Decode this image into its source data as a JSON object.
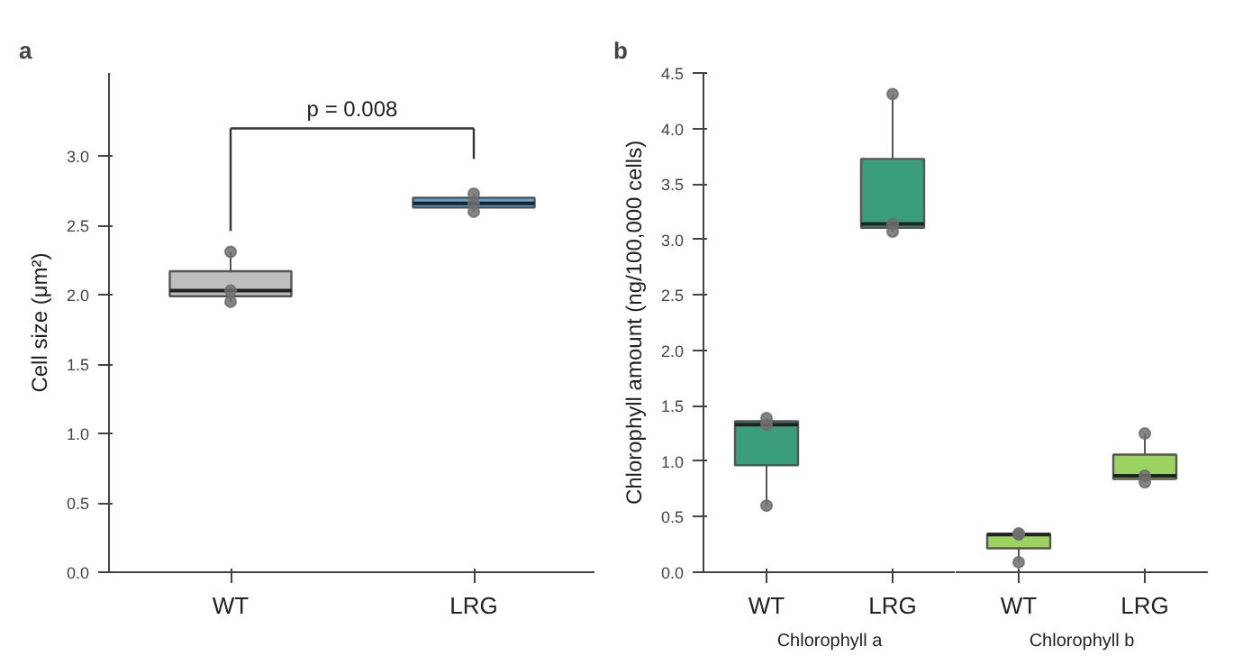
{
  "chart_data": [
    {
      "type": "box",
      "title": "a",
      "ylabel": "Cell size (μm²)",
      "categories": [
        "WT",
        "LRG"
      ],
      "colors": [
        "#bebebe",
        "#5aa5dc"
      ],
      "boxes": [
        {
          "low": 1.95,
          "q1": 1.99,
          "median": 2.03,
          "q3": 2.17,
          "high": 2.31
        },
        {
          "low": 2.6,
          "q1": 2.63,
          "median": 2.66,
          "q3": 2.7,
          "high": 2.73
        }
      ],
      "series": [
        {
          "type": "scatter",
          "color": "#6e6e6e",
          "x": [
            "WT",
            "WT",
            "WT",
            "LRG",
            "LRG",
            "LRG"
          ],
          "values": [
            1.95,
            2.03,
            2.31,
            2.6,
            2.66,
            2.73
          ]
        }
      ],
      "ylim": [
        0,
        3.6
      ],
      "yticks": [
        {
          "value": 0,
          "label": "0.0"
        },
        0.5,
        {
          "value": 1,
          "label": "1.0"
        },
        1.5,
        {
          "value": 2,
          "label": "2.0"
        },
        2.5,
        {
          "value": 3,
          "label": "3.0"
        }
      ],
      "grid": false,
      "annotations": [
        "p = 0.008"
      ]
    },
    {
      "type": "box",
      "title": "b",
      "ylabel": "Chlorophyll amount (ng/100,000 cells)",
      "xlabel": "Chlorophyll a",
      "categories": [
        "WT",
        "LRG"
      ],
      "colors": [
        "#3a9e7e",
        "#3a9e7e"
      ],
      "boxes": [
        {
          "low": 0.6,
          "q1": 0.965,
          "median": 1.33,
          "q3": 1.36,
          "high": 1.39
        },
        {
          "low": 3.07,
          "q1": 3.105,
          "median": 3.14,
          "q3": 3.725,
          "high": 4.31
        }
      ],
      "series": [
        {
          "type": "scatter",
          "color": "#6e6e6e",
          "x": [
            "WT",
            "WT",
            "WT",
            "LRG",
            "LRG",
            "LRG"
          ],
          "values": [
            0.6,
            1.33,
            1.39,
            3.07,
            3.14,
            4.31
          ]
        }
      ],
      "ylim": [
        0,
        4.5
      ],
      "yticks": [
        {
          "value": 0,
          "label": "0.0"
        },
        0.5,
        {
          "value": 1,
          "label": "1.0"
        },
        1.5,
        {
          "value": 2,
          "label": "2.0"
        },
        2.5,
        {
          "value": 3,
          "label": "3.0"
        },
        3.5,
        {
          "value": 4,
          "label": "4.0"
        },
        4.5
      ],
      "grid": false
    },
    {
      "type": "box",
      "xlabel": "Chlorophyll b",
      "categories": [
        "WT",
        "LRG"
      ],
      "colors": [
        "#9bd35f",
        "#9bd35f"
      ],
      "boxes": [
        {
          "low": 0.09,
          "q1": 0.215,
          "median": 0.34,
          "q3": 0.345,
          "high": 0.35
        },
        {
          "low": 0.81,
          "q1": 0.84,
          "median": 0.87,
          "q3": 1.06,
          "high": 1.25
        }
      ],
      "series": [
        {
          "type": "scatter",
          "color": "#6e6e6e",
          "x": [
            "WT",
            "WT",
            "WT",
            "LRG",
            "LRG",
            "LRG"
          ],
          "values": [
            0.09,
            0.34,
            0.35,
            0.81,
            0.87,
            1.25
          ]
        }
      ],
      "ylim": [
        0,
        4.5
      ],
      "grid": false,
      "tick_labels": "x"
    }
  ]
}
